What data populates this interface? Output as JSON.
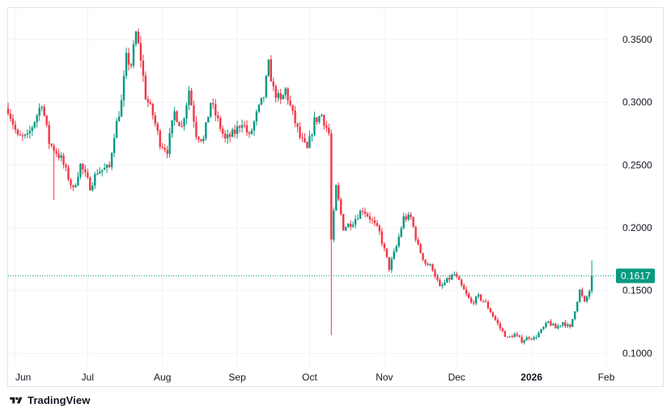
{
  "branding": {
    "logo_text": "TradingView",
    "logo_icon": "tradingview-logo-icon"
  },
  "colors": {
    "up": "#089981",
    "down": "#f23645",
    "grid": "#f0f3fa",
    "axis_text": "#131722",
    "price_line": "#089981",
    "price_label_bg": "#089981"
  },
  "chart_data": {
    "type": "candlestick",
    "title": "",
    "xlabel": "",
    "ylabel": "",
    "ylim": [
      0.09,
      0.375
    ],
    "x_range": [
      "2025-05-29",
      "2026-02-03"
    ],
    "y_ticks": [
      "0.3500",
      "0.3000",
      "0.2500",
      "0.2000",
      "0.1500",
      "0.1000"
    ],
    "x_ticks": [
      {
        "label": "Jun",
        "date": "2025-06-01",
        "bold": false
      },
      {
        "label": "Jul",
        "date": "2025-07-01",
        "bold": false
      },
      {
        "label": "Aug",
        "date": "2025-08-01",
        "bold": false
      },
      {
        "label": "Sep",
        "date": "2025-09-01",
        "bold": false
      },
      {
        "label": "Oct",
        "date": "2025-10-01",
        "bold": false
      },
      {
        "label": "Nov",
        "date": "2025-11-01",
        "bold": false
      },
      {
        "label": "Dec",
        "date": "2025-12-01",
        "bold": false
      },
      {
        "label": "2026",
        "date": "2026-01-01",
        "bold": true
      },
      {
        "label": "Feb",
        "date": "2026-02-01",
        "bold": false
      }
    ],
    "grid": true,
    "last_price": "0.1617",
    "start_date": "2025-05-29",
    "price_path": [
      [
        "2025-05-29",
        0.295
      ],
      [
        "2025-06-02",
        0.272
      ],
      [
        "2025-06-06",
        0.272
      ],
      [
        "2025-06-10",
        0.29
      ],
      [
        "2025-06-12",
        0.3
      ],
      [
        "2025-06-15",
        0.268
      ],
      [
        "2025-06-20",
        0.255
      ],
      [
        "2025-06-25",
        0.23
      ],
      [
        "2025-06-28",
        0.25
      ],
      [
        "2025-07-02",
        0.233
      ],
      [
        "2025-07-05",
        0.245
      ],
      [
        "2025-07-10",
        0.248
      ],
      [
        "2025-07-12",
        0.275
      ],
      [
        "2025-07-15",
        0.3
      ],
      [
        "2025-07-17",
        0.335
      ],
      [
        "2025-07-19",
        0.33
      ],
      [
        "2025-07-21",
        0.355
      ],
      [
        "2025-07-23",
        0.335
      ],
      [
        "2025-07-25",
        0.305
      ],
      [
        "2025-07-28",
        0.29
      ],
      [
        "2025-07-31",
        0.268
      ],
      [
        "2025-08-03",
        0.262
      ],
      [
        "2025-08-06",
        0.292
      ],
      [
        "2025-08-09",
        0.28
      ],
      [
        "2025-08-12",
        0.31
      ],
      [
        "2025-08-15",
        0.275
      ],
      [
        "2025-08-18",
        0.27
      ],
      [
        "2025-08-21",
        0.3
      ],
      [
        "2025-08-24",
        0.285
      ],
      [
        "2025-08-27",
        0.27
      ],
      [
        "2025-08-31",
        0.276
      ],
      [
        "2025-09-03",
        0.285
      ],
      [
        "2025-09-06",
        0.272
      ],
      [
        "2025-09-09",
        0.29
      ],
      [
        "2025-09-12",
        0.305
      ],
      [
        "2025-09-14",
        0.33
      ],
      [
        "2025-09-16",
        0.31
      ],
      [
        "2025-09-19",
        0.3
      ],
      [
        "2025-09-21",
        0.31
      ],
      [
        "2025-09-24",
        0.29
      ],
      [
        "2025-09-27",
        0.272
      ],
      [
        "2025-09-30",
        0.262
      ],
      [
        "2025-10-03",
        0.285
      ],
      [
        "2025-10-06",
        0.29
      ],
      [
        "2025-10-09",
        0.275
      ],
      [
        "2025-10-10",
        0.19
      ],
      [
        "2025-10-12",
        0.232
      ],
      [
        "2025-10-15",
        0.2
      ],
      [
        "2025-10-19",
        0.205
      ],
      [
        "2025-10-23",
        0.215
      ],
      [
        "2025-10-26",
        0.208
      ],
      [
        "2025-10-30",
        0.196
      ],
      [
        "2025-11-03",
        0.168
      ],
      [
        "2025-11-06",
        0.185
      ],
      [
        "2025-11-09",
        0.208
      ],
      [
        "2025-11-12",
        0.208
      ],
      [
        "2025-11-15",
        0.185
      ],
      [
        "2025-11-18",
        0.172
      ],
      [
        "2025-11-21",
        0.168
      ],
      [
        "2025-11-24",
        0.152
      ],
      [
        "2025-11-27",
        0.158
      ],
      [
        "2025-11-30",
        0.163
      ],
      [
        "2025-12-04",
        0.15
      ],
      [
        "2025-12-07",
        0.14
      ],
      [
        "2025-12-10",
        0.145
      ],
      [
        "2025-12-13",
        0.14
      ],
      [
        "2025-12-16",
        0.13
      ],
      [
        "2025-12-19",
        0.12
      ],
      [
        "2025-12-22",
        0.112
      ],
      [
        "2025-12-25",
        0.115
      ],
      [
        "2025-12-28",
        0.11
      ],
      [
        "2025-12-31",
        0.113
      ],
      [
        "2026-01-02",
        0.112
      ],
      [
        "2026-01-05",
        0.118
      ],
      [
        "2026-01-08",
        0.125
      ],
      [
        "2026-01-11",
        0.12
      ],
      [
        "2026-01-14",
        0.125
      ],
      [
        "2026-01-17",
        0.12
      ],
      [
        "2026-01-19",
        0.135
      ],
      [
        "2026-01-21",
        0.15
      ],
      [
        "2026-01-23",
        0.14
      ],
      [
        "2026-01-25",
        0.15
      ],
      [
        "2026-01-26",
        0.1617
      ]
    ],
    "notable_wicks": [
      {
        "date": "2025-10-10",
        "low": 0.1145
      },
      {
        "date": "2025-07-21",
        "high": 0.357
      },
      {
        "date": "2025-09-14",
        "high": 0.332
      },
      {
        "date": "2025-06-17",
        "low": 0.222
      }
    ]
  }
}
